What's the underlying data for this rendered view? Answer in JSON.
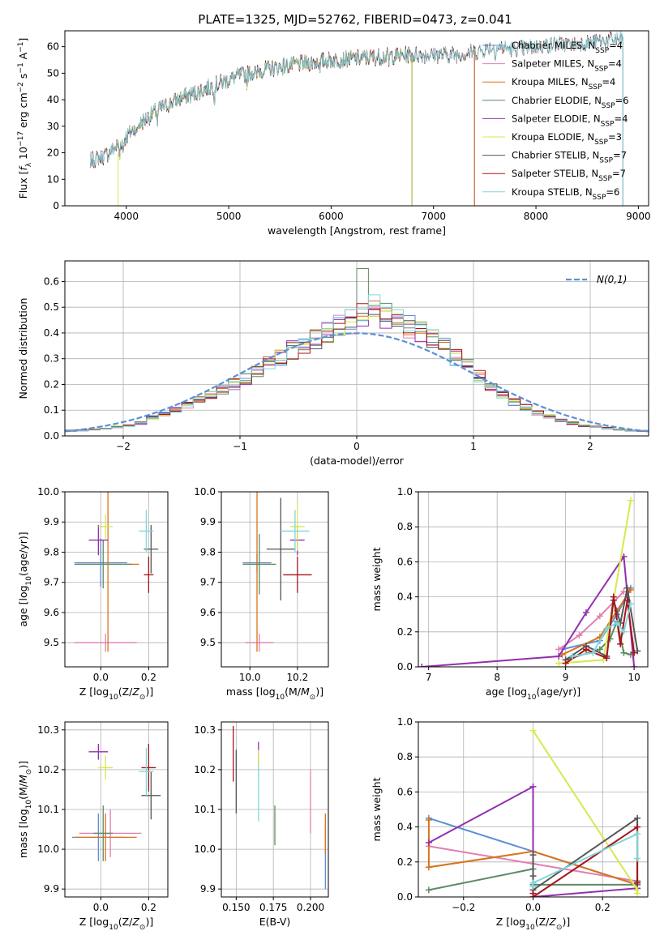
{
  "figure": {
    "title": "PLATE=1325, MJD=52762, FIBERID=0473, z=0.041"
  },
  "colors": {
    "Chabrier MILES": "#5b8fd6",
    "Salpeter MILES": "#e07fb3",
    "Kroupa MILES": "#d9731b",
    "Chabrier ELODIE": "#5e8a63",
    "Salpeter ELODIE": "#932fad",
    "Kroupa ELODIE": "#d7e84e",
    "Chabrier STELIB": "#555555",
    "Salpeter STELIB": "#a8141a",
    "Kroupa STELIB": "#7fd6dc",
    "normal": "#5b8fd6"
  },
  "legend_labels": [
    "Chabrier MILES, N_SSP=4",
    "Salpeter MILES, N_SSP=4",
    "Kroupa MILES, N_SSP=4",
    "Chabrier ELODIE, N_SSP=6",
    "Salpeter ELODIE, N_SSP=4",
    "Kroupa ELODIE, N_SSP=3",
    "Chabrier STELIB, N_SSP=7",
    "Salpeter STELIB, N_SSP=7",
    "Kroupa STELIB, N_SSP=6"
  ],
  "chart_data": [
    {
      "id": "spectrum",
      "type": "line",
      "title": "PLATE=1325, MJD=52762, FIBERID=0473, z=0.041",
      "xlabel": "wavelength [Angstrom, rest frame]",
      "ylabel": "Flux [f_λ 10^-17 erg cm^-2 s^-1 A^-1]",
      "xlim": [
        3400,
        9100
      ],
      "ylim": [
        0,
        66
      ],
      "xticks": [
        4000,
        5000,
        6000,
        7000,
        8000,
        9000
      ],
      "yticks": [
        0,
        10,
        20,
        30,
        40,
        50,
        60
      ],
      "grid": false,
      "legend": "right",
      "continuum": {
        "x": [
          3650,
          3800,
          3950,
          4100,
          4300,
          4500,
          4700,
          4900,
          5100,
          5300,
          5600,
          6000,
          6400,
          6800,
          7000,
          7200,
          7400,
          7600,
          7800,
          8000,
          8200,
          8400,
          8600,
          8850
        ],
        "y": [
          17,
          19,
          24,
          30,
          36,
          40,
          43,
          46,
          49,
          51,
          53,
          55,
          56,
          57,
          57,
          57,
          58,
          60,
          59,
          60,
          61,
          61,
          62,
          63
        ]
      },
      "series": [
        {
          "name": "Chabrier MILES",
          "xmin": 3650,
          "xmax": 7400
        },
        {
          "name": "Salpeter MILES",
          "xmin": 3650,
          "xmax": 7400
        },
        {
          "name": "Kroupa MILES",
          "xmin": 3650,
          "xmax": 7400
        },
        {
          "name": "Chabrier ELODIE",
          "xmin": 3900,
          "xmax": 6790
        },
        {
          "name": "Salpeter ELODIE",
          "xmin": 3900,
          "xmax": 6790
        },
        {
          "name": "Kroupa ELODIE",
          "xmin": 3900,
          "xmax": 6790
        },
        {
          "name": "Chabrier STELIB",
          "xmin": 3650,
          "xmax": 8850
        },
        {
          "name": "Salpeter STELIB",
          "xmin": 3650,
          "xmax": 8850
        },
        {
          "name": "Kroupa STELIB",
          "xmin": 3650,
          "xmax": 8850
        }
      ]
    },
    {
      "id": "residuals",
      "type": "line",
      "xlabel": "(data-model)/error",
      "ylabel": "Normed distribution",
      "xlim": [
        -2.5,
        2.5
      ],
      "ylim": [
        0,
        0.68
      ],
      "xticks": [
        -2,
        -1,
        0,
        1,
        2
      ],
      "yticks": [
        0.0,
        0.1,
        0.2,
        0.3,
        0.4,
        0.5,
        0.6
      ],
      "grid": true,
      "legend": "top-right",
      "normal_label": "N(0,1)",
      "bin_width": 0.1,
      "hist_x_range": [
        -2.5,
        2.5
      ],
      "base_shape": [
        0.02,
        0.022,
        0.025,
        0.03,
        0.035,
        0.04,
        0.05,
        0.07,
        0.085,
        0.1,
        0.12,
        0.14,
        0.16,
        0.18,
        0.2,
        0.22,
        0.25,
        0.28,
        0.3,
        0.33,
        0.35,
        0.37,
        0.4,
        0.42,
        0.44,
        0.47,
        0.5,
        0.46,
        0.44,
        0.42,
        0.4,
        0.38,
        0.35,
        0.3,
        0.27,
        0.23,
        0.19,
        0.16,
        0.13,
        0.11,
        0.09,
        0.075,
        0.06,
        0.05,
        0.04,
        0.035,
        0.03,
        0.025,
        0.02,
        0.02
      ],
      "series": [
        {
          "name": "Chabrier MILES"
        },
        {
          "name": "Salpeter MILES"
        },
        {
          "name": "Kroupa MILES"
        },
        {
          "name": "Chabrier ELODIE"
        },
        {
          "name": "Salpeter ELODIE"
        },
        {
          "name": "Kroupa ELODIE"
        },
        {
          "name": "Chabrier STELIB"
        },
        {
          "name": "Salpeter STELIB"
        },
        {
          "name": "Kroupa STELIB"
        }
      ]
    },
    {
      "id": "age_vs_Z",
      "type": "scatter",
      "xlabel": "Z [log10(Z/Z_sun)]",
      "ylabel": "age [log10(age/yr)]",
      "xlim": [
        -0.15,
        0.28
      ],
      "ylim": [
        9.42,
        10.0
      ],
      "xticks": [
        0.0,
        0.2
      ],
      "yticks": [
        9.5,
        9.6,
        9.7,
        9.8,
        9.9,
        10.0
      ],
      "grid": true,
      "points": [
        {
          "name": "Chabrier MILES",
          "x": 0.0,
          "xerr": 0.11,
          "y": 9.765,
          "yerr": 0.08
        },
        {
          "name": "Salpeter MILES",
          "x": 0.02,
          "xerr": 0.13,
          "y": 9.5,
          "yerr": 0.03
        },
        {
          "name": "Kroupa MILES",
          "x": 0.03,
          "xerr": 0.13,
          "y": 9.76,
          "yerr": 0.29
        },
        {
          "name": "Chabrier ELODIE",
          "x": 0.01,
          "xerr": 0.12,
          "y": 9.76,
          "yerr": 0.08
        },
        {
          "name": "Salpeter ELODIE",
          "x": -0.01,
          "xerr": 0.04,
          "y": 9.84,
          "yerr": 0.05
        },
        {
          "name": "Kroupa ELODIE",
          "x": 0.02,
          "xerr": 0.03,
          "y": 9.885,
          "yerr": 0.04
        },
        {
          "name": "Chabrier STELIB",
          "x": 0.21,
          "xerr": 0.03,
          "y": 9.81,
          "yerr": 0.08
        },
        {
          "name": "Salpeter STELIB",
          "x": 0.2,
          "xerr": 0.02,
          "y": 9.725,
          "yerr": 0.06
        },
        {
          "name": "Kroupa STELIB",
          "x": 0.19,
          "xerr": 0.03,
          "y": 9.87,
          "yerr": 0.07
        }
      ]
    },
    {
      "id": "age_vs_mass",
      "type": "scatter",
      "xlabel": "mass [log10(M/M_sun)]",
      "ylabel": "",
      "xlim": [
        9.88,
        10.33
      ],
      "ylim": [
        9.42,
        10.0
      ],
      "xticks": [
        10.0,
        10.2
      ],
      "yticks": [
        9.5,
        9.6,
        9.7,
        9.8,
        9.9,
        10.0
      ],
      "grid": true,
      "points": [
        {
          "name": "Chabrier MILES",
          "x": 10.03,
          "xerr": 0.06,
          "y": 9.765,
          "yerr": 0.03
        },
        {
          "name": "Salpeter MILES",
          "x": 10.04,
          "xerr": 0.06,
          "y": 9.5,
          "yerr": 0.03
        },
        {
          "name": "Kroupa MILES",
          "x": 10.03,
          "xerr": 0.06,
          "y": 9.76,
          "yerr": 0.29
        },
        {
          "name": "Chabrier ELODIE",
          "x": 10.04,
          "xerr": 0.07,
          "y": 9.76,
          "yerr": 0.1
        },
        {
          "name": "Salpeter ELODIE",
          "x": 10.2,
          "xerr": 0.03,
          "y": 9.84,
          "yerr": 0.05
        },
        {
          "name": "Kroupa ELODIE",
          "x": 10.2,
          "xerr": 0.03,
          "y": 9.885,
          "yerr": 0.08
        },
        {
          "name": "Chabrier STELIB",
          "x": 10.13,
          "xerr": 0.06,
          "y": 9.81,
          "yerr": 0.17
        },
        {
          "name": "Salpeter STELIB",
          "x": 10.2,
          "xerr": 0.06,
          "y": 9.725,
          "yerr": 0.06
        },
        {
          "name": "Kroupa STELIB",
          "x": 10.19,
          "xerr": 0.06,
          "y": 9.87,
          "yerr": 0.07
        }
      ]
    },
    {
      "id": "massweight_vs_age",
      "type": "line",
      "xlabel": "age [log10(age/yr)]",
      "ylabel": "mass weight",
      "xlim": [
        6.85,
        10.2
      ],
      "ylim": [
        0.0,
        1.0
      ],
      "xticks": [
        7,
        8,
        9,
        10
      ],
      "yticks": [
        0.0,
        0.2,
        0.4,
        0.6,
        0.8,
        1.0
      ],
      "grid": true,
      "series": [
        {
          "name": "Chabrier MILES",
          "x": [
            8.95,
            9.5,
            9.75,
            9.95
          ],
          "y": [
            0.1,
            0.15,
            0.3,
            0.45
          ]
        },
        {
          "name": "Salpeter MILES",
          "x": [
            8.9,
            9.2,
            9.5,
            9.85
          ],
          "y": [
            0.1,
            0.18,
            0.29,
            0.43
          ]
        },
        {
          "name": "Kroupa MILES",
          "x": [
            8.95,
            9.5,
            9.75,
            9.95
          ],
          "y": [
            0.07,
            0.17,
            0.32,
            0.44
          ]
        },
        {
          "name": "Chabrier ELODIE",
          "x": [
            9.0,
            9.5,
            9.65,
            9.75,
            9.85,
            9.95
          ],
          "y": [
            0.04,
            0.1,
            0.16,
            0.26,
            0.08,
            0.07
          ]
        },
        {
          "name": "Salpeter ELODIE",
          "x": [
            6.9,
            8.9,
            9.3,
            9.85,
            10.0
          ],
          "y": [
            0.0,
            0.06,
            0.31,
            0.63,
            0.0
          ]
        },
        {
          "name": "Kroupa ELODIE",
          "x": [
            8.9,
            9.55,
            9.95
          ],
          "y": [
            0.02,
            0.04,
            0.95
          ]
        },
        {
          "name": "Chabrier STELIB",
          "x": [
            9.0,
            9.3,
            9.6,
            9.7,
            9.8,
            9.9,
            10.05
          ],
          "y": [
            0.04,
            0.12,
            0.06,
            0.38,
            0.25,
            0.45,
            0.09
          ]
        },
        {
          "name": "Salpeter STELIB",
          "x": [
            9.0,
            9.3,
            9.6,
            9.7,
            9.8,
            9.9,
            10.0
          ],
          "y": [
            0.02,
            0.1,
            0.05,
            0.4,
            0.13,
            0.38,
            0.08
          ]
        },
        {
          "name": "Kroupa STELIB",
          "x": [
            9.1,
            9.4,
            9.6,
            9.75,
            9.85,
            9.95
          ],
          "y": [
            0.06,
            0.08,
            0.22,
            0.25,
            0.2,
            0.36
          ]
        }
      ]
    },
    {
      "id": "mass_vs_Z",
      "type": "scatter",
      "xlabel": "Z [log10(Z/Z_sun)]",
      "ylabel": "mass [log10(M/M_sun)]",
      "xlim": [
        -0.15,
        0.28
      ],
      "ylim": [
        9.88,
        10.32
      ],
      "xticks": [
        0.0,
        0.2
      ],
      "yticks": [
        9.9,
        10.0,
        10.1,
        10.2,
        10.3
      ],
      "grid": true,
      "points": [
        {
          "name": "Chabrier MILES",
          "x": -0.01,
          "xerr": 0.11,
          "y": 10.03,
          "yerr": 0.06
        },
        {
          "name": "Salpeter MILES",
          "x": 0.04,
          "xerr": 0.13,
          "y": 10.04,
          "yerr": 0.06
        },
        {
          "name": "Kroupa MILES",
          "x": 0.02,
          "xerr": 0.13,
          "y": 10.03,
          "yerr": 0.06
        },
        {
          "name": "Chabrier ELODIE",
          "x": 0.01,
          "xerr": 0.04,
          "y": 10.04,
          "yerr": 0.07
        },
        {
          "name": "Salpeter ELODIE",
          "x": -0.01,
          "xerr": 0.04,
          "y": 10.245,
          "yerr": 0.02
        },
        {
          "name": "Kroupa ELODIE",
          "x": 0.02,
          "xerr": 0.03,
          "y": 10.205,
          "yerr": 0.03
        },
        {
          "name": "Chabrier STELIB",
          "x": 0.21,
          "xerr": 0.04,
          "y": 10.135,
          "yerr": 0.06
        },
        {
          "name": "Salpeter STELIB",
          "x": 0.2,
          "xerr": 0.03,
          "y": 10.205,
          "yerr": 0.06
        },
        {
          "name": "Kroupa STELIB",
          "x": 0.19,
          "xerr": 0.03,
          "y": 10.195,
          "yerr": 0.06
        }
      ]
    },
    {
      "id": "mass_vs_ebv",
      "type": "scatter",
      "xlabel": "E(B-V)",
      "ylabel": "",
      "xlim": [
        0.14,
        0.212
      ],
      "ylim": [
        9.88,
        10.32
      ],
      "xticks": [
        0.15,
        0.175,
        0.2
      ],
      "yticks": [
        9.9,
        10.0,
        10.1,
        10.2,
        10.3
      ],
      "grid": true,
      "points": [
        {
          "name": "Chabrier MILES",
          "x": 0.21,
          "xerr": 0,
          "y": 9.98,
          "yerr": 0.08
        },
        {
          "name": "Salpeter MILES",
          "x": 0.2,
          "xerr": 0,
          "y": 10.12,
          "yerr": 0.08
        },
        {
          "name": "Kroupa MILES",
          "x": 0.21,
          "xerr": 0,
          "y": 10.04,
          "yerr": 0.05
        },
        {
          "name": "Chabrier ELODIE",
          "x": 0.176,
          "xerr": 0,
          "y": 10.06,
          "yerr": 0.05
        },
        {
          "name": "Salpeter ELODIE",
          "x": 0.165,
          "xerr": 0,
          "y": 10.24,
          "yerr": 0.03
        },
        {
          "name": "Kroupa ELODIE",
          "x": 0.165,
          "xerr": 0,
          "y": 10.22,
          "yerr": 0.03
        },
        {
          "name": "Chabrier STELIB",
          "x": 0.15,
          "xerr": 0,
          "y": 10.17,
          "yerr": 0.08
        },
        {
          "name": "Salpeter STELIB",
          "x": 0.148,
          "xerr": 0,
          "y": 10.24,
          "yerr": 0.07
        },
        {
          "name": "Kroupa STELIB",
          "x": 0.165,
          "xerr": 0,
          "y": 10.14,
          "yerr": 0.07
        }
      ]
    },
    {
      "id": "massweight_vs_Z",
      "type": "line",
      "xlabel": "Z [log10(Z/Z_sun)]",
      "ylabel": "mass weight",
      "xlim": [
        -0.33,
        0.33
      ],
      "ylim": [
        0.0,
        1.0
      ],
      "xticks": [
        -0.2,
        0.0,
        0.2
      ],
      "yticks": [
        0.0,
        0.2,
        0.4,
        0.6,
        0.8,
        1.0
      ],
      "grid": true,
      "series": [
        {
          "name": "Chabrier MILES",
          "x": [
            -0.3,
            0.0,
            0.3
          ],
          "y": [
            0.45,
            0.26,
            0.07
          ]
        },
        {
          "name": "Salpeter MILES",
          "x": [
            -0.3,
            0.0,
            0.3
          ],
          "y": [
            0.29,
            0.19,
            0.09
          ]
        },
        {
          "name": "Kroupa MILES",
          "x": [
            -0.3,
            -0.3,
            0.0,
            0.3
          ],
          "y": [
            0.44,
            0.17,
            0.26,
            0.07
          ]
        },
        {
          "name": "Chabrier ELODIE",
          "x": [
            -0.3,
            0.0,
            0.0,
            0.3
          ],
          "y": [
            0.04,
            0.16,
            0.07,
            0.07
          ]
        },
        {
          "name": "Salpeter ELODIE",
          "x": [
            -0.3,
            0.0,
            0.0,
            0.3
          ],
          "y": [
            0.31,
            0.63,
            0.0,
            0.05
          ]
        },
        {
          "name": "Kroupa ELODIE",
          "x": [
            0.0,
            0.3,
            0.3
          ],
          "y": [
            0.95,
            0.04,
            0.02
          ]
        },
        {
          "name": "Chabrier STELIB",
          "x": [
            0.0,
            0.0,
            0.0,
            0.3,
            0.3
          ],
          "y": [
            0.24,
            0.12,
            0.04,
            0.45,
            0.09
          ]
        },
        {
          "name": "Salpeter STELIB",
          "x": [
            0.0,
            0.0,
            0.3,
            0.3
          ],
          "y": [
            0.02,
            0.0,
            0.4,
            0.08
          ]
        },
        {
          "name": "Kroupa STELIB",
          "x": [
            0.0,
            0.0,
            0.3,
            0.3
          ],
          "y": [
            0.06,
            0.08,
            0.36,
            0.22
          ]
        }
      ]
    }
  ]
}
